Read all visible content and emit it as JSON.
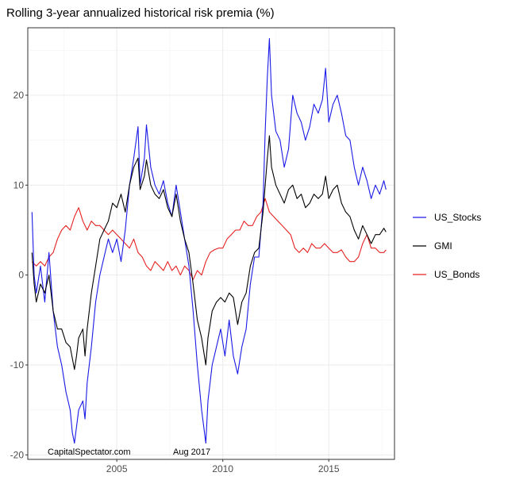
{
  "chart_data": {
    "type": "line",
    "title": "Rolling 3-year annualized historical risk premia (%)",
    "xlabel": "",
    "ylabel": "",
    "xlim": [
      2000.8,
      2018.1
    ],
    "ylim": [
      -20.5,
      27.5
    ],
    "xticks": [
      2005,
      2010,
      2015
    ],
    "yticks": [
      -20,
      -10,
      0,
      10,
      20
    ],
    "grid": true,
    "legend_position": "right",
    "annotations": [
      "CapitalSpectator.com",
      "Aug 2017"
    ],
    "series": [
      {
        "name": "US_Stocks",
        "color": "#1a1ae6",
        "points": [
          [
            2001.0,
            7.0
          ],
          [
            2001.1,
            0.0
          ],
          [
            2001.2,
            -2.0
          ],
          [
            2001.4,
            1.0
          ],
          [
            2001.6,
            -3.0
          ],
          [
            2001.8,
            2.5
          ],
          [
            2002.0,
            -4.0
          ],
          [
            2002.2,
            -8.0
          ],
          [
            2002.4,
            -10.0
          ],
          [
            2002.6,
            -13.0
          ],
          [
            2002.8,
            -15.0
          ],
          [
            2002.9,
            -17.5
          ],
          [
            2003.0,
            -18.7
          ],
          [
            2003.2,
            -15.0
          ],
          [
            2003.4,
            -14.0
          ],
          [
            2003.5,
            -16.0
          ],
          [
            2003.6,
            -12.0
          ],
          [
            2003.8,
            -8.0
          ],
          [
            2004.0,
            -3.0
          ],
          [
            2004.2,
            0.0
          ],
          [
            2004.4,
            2.0
          ],
          [
            2004.6,
            4.0
          ],
          [
            2004.8,
            2.5
          ],
          [
            2005.0,
            4.0
          ],
          [
            2005.2,
            1.5
          ],
          [
            2005.4,
            5.0
          ],
          [
            2005.6,
            10.0
          ],
          [
            2005.8,
            13.0
          ],
          [
            2006.0,
            16.5
          ],
          [
            2006.1,
            10.0
          ],
          [
            2006.3,
            13.0
          ],
          [
            2006.4,
            16.7
          ],
          [
            2006.6,
            12.0
          ],
          [
            2006.8,
            10.0
          ],
          [
            2007.0,
            9.0
          ],
          [
            2007.2,
            10.5
          ],
          [
            2007.4,
            8.0
          ],
          [
            2007.6,
            6.5
          ],
          [
            2007.8,
            10.0
          ],
          [
            2008.0,
            7.0
          ],
          [
            2008.2,
            4.0
          ],
          [
            2008.4,
            1.0
          ],
          [
            2008.6,
            -4.0
          ],
          [
            2008.8,
            -10.0
          ],
          [
            2009.0,
            -15.0
          ],
          [
            2009.2,
            -18.7
          ],
          [
            2009.3,
            -14.0
          ],
          [
            2009.5,
            -10.0
          ],
          [
            2009.7,
            -8.0
          ],
          [
            2009.9,
            -6.0
          ],
          [
            2010.1,
            -9.0
          ],
          [
            2010.3,
            -5.0
          ],
          [
            2010.5,
            -9.0
          ],
          [
            2010.7,
            -11.0
          ],
          [
            2010.9,
            -8.0
          ],
          [
            2011.1,
            -6.0
          ],
          [
            2011.3,
            -1.0
          ],
          [
            2011.5,
            2.0
          ],
          [
            2011.7,
            2.0
          ],
          [
            2011.9,
            8.0
          ],
          [
            2012.0,
            16.0
          ],
          [
            2012.1,
            22.0
          ],
          [
            2012.2,
            26.3
          ],
          [
            2012.3,
            20.0
          ],
          [
            2012.5,
            16.0
          ],
          [
            2012.7,
            15.0
          ],
          [
            2012.9,
            12.0
          ],
          [
            2013.1,
            14.0
          ],
          [
            2013.3,
            20.0
          ],
          [
            2013.5,
            18.0
          ],
          [
            2013.7,
            17.0
          ],
          [
            2013.9,
            15.0
          ],
          [
            2014.1,
            16.5
          ],
          [
            2014.3,
            19.0
          ],
          [
            2014.5,
            18.0
          ],
          [
            2014.7,
            19.5
          ],
          [
            2014.85,
            23.0
          ],
          [
            2015.0,
            17.0
          ],
          [
            2015.2,
            19.0
          ],
          [
            2015.4,
            20.0
          ],
          [
            2015.6,
            18.0
          ],
          [
            2015.8,
            15.5
          ],
          [
            2016.0,
            15.0
          ],
          [
            2016.2,
            12.0
          ],
          [
            2016.4,
            10.0
          ],
          [
            2016.6,
            12.0
          ],
          [
            2016.8,
            10.5
          ],
          [
            2017.0,
            8.5
          ],
          [
            2017.2,
            10.0
          ],
          [
            2017.4,
            9.0
          ],
          [
            2017.6,
            10.5
          ],
          [
            2017.7,
            9.5
          ]
        ]
      },
      {
        "name": "GMI",
        "color": "#000000",
        "points": [
          [
            2001.0,
            2.5
          ],
          [
            2001.1,
            -1.0
          ],
          [
            2001.2,
            -3.0
          ],
          [
            2001.4,
            -1.0
          ],
          [
            2001.6,
            -2.0
          ],
          [
            2001.8,
            0.0
          ],
          [
            2002.0,
            -4.0
          ],
          [
            2002.2,
            -6.0
          ],
          [
            2002.4,
            -6.0
          ],
          [
            2002.6,
            -7.5
          ],
          [
            2002.8,
            -8.0
          ],
          [
            2003.0,
            -10.5
          ],
          [
            2003.1,
            -9.0
          ],
          [
            2003.2,
            -7.0
          ],
          [
            2003.4,
            -6.0
          ],
          [
            2003.5,
            -9.0
          ],
          [
            2003.6,
            -6.0
          ],
          [
            2003.8,
            -2.0
          ],
          [
            2004.0,
            1.0
          ],
          [
            2004.2,
            4.0
          ],
          [
            2004.4,
            5.0
          ],
          [
            2004.6,
            6.0
          ],
          [
            2004.8,
            8.0
          ],
          [
            2005.0,
            7.5
          ],
          [
            2005.2,
            9.0
          ],
          [
            2005.4,
            7.0
          ],
          [
            2005.6,
            10.0
          ],
          [
            2005.8,
            12.0
          ],
          [
            2006.0,
            13.0
          ],
          [
            2006.1,
            9.5
          ],
          [
            2006.3,
            11.0
          ],
          [
            2006.4,
            12.8
          ],
          [
            2006.6,
            10.0
          ],
          [
            2006.8,
            9.0
          ],
          [
            2007.0,
            8.5
          ],
          [
            2007.2,
            9.5
          ],
          [
            2007.4,
            7.5
          ],
          [
            2007.6,
            6.5
          ],
          [
            2007.8,
            9.0
          ],
          [
            2008.0,
            6.0
          ],
          [
            2008.2,
            4.0
          ],
          [
            2008.4,
            2.5
          ],
          [
            2008.6,
            -1.0
          ],
          [
            2008.8,
            -5.0
          ],
          [
            2009.0,
            -7.0
          ],
          [
            2009.2,
            -10.0
          ],
          [
            2009.3,
            -7.0
          ],
          [
            2009.5,
            -4.0
          ],
          [
            2009.7,
            -3.0
          ],
          [
            2009.9,
            -2.5
          ],
          [
            2010.1,
            -3.0
          ],
          [
            2010.3,
            -2.0
          ],
          [
            2010.5,
            -2.5
          ],
          [
            2010.7,
            -5.5
          ],
          [
            2010.9,
            -3.0
          ],
          [
            2011.1,
            -2.0
          ],
          [
            2011.3,
            1.0
          ],
          [
            2011.5,
            2.5
          ],
          [
            2011.7,
            3.0
          ],
          [
            2011.9,
            7.0
          ],
          [
            2012.0,
            10.0
          ],
          [
            2012.1,
            13.0
          ],
          [
            2012.2,
            15.5
          ],
          [
            2012.3,
            12.0
          ],
          [
            2012.5,
            10.0
          ],
          [
            2012.7,
            9.0
          ],
          [
            2012.9,
            8.0
          ],
          [
            2013.1,
            9.5
          ],
          [
            2013.3,
            10.0
          ],
          [
            2013.5,
            8.5
          ],
          [
            2013.7,
            9.0
          ],
          [
            2013.9,
            7.5
          ],
          [
            2014.1,
            8.0
          ],
          [
            2014.3,
            9.0
          ],
          [
            2014.5,
            8.5
          ],
          [
            2014.7,
            9.0
          ],
          [
            2014.85,
            11.0
          ],
          [
            2015.0,
            8.5
          ],
          [
            2015.2,
            9.5
          ],
          [
            2015.4,
            10.0
          ],
          [
            2015.6,
            8.0
          ],
          [
            2015.8,
            7.0
          ],
          [
            2016.0,
            6.5
          ],
          [
            2016.2,
            5.0
          ],
          [
            2016.4,
            4.0
          ],
          [
            2016.6,
            5.5
          ],
          [
            2016.8,
            4.5
          ],
          [
            2017.0,
            3.5
          ],
          [
            2017.2,
            4.5
          ],
          [
            2017.4,
            4.5
          ],
          [
            2017.6,
            5.2
          ],
          [
            2017.7,
            4.8
          ]
        ]
      },
      {
        "name": "US_Bonds",
        "color": "#e62020",
        "points": [
          [
            2001.0,
            1.5
          ],
          [
            2001.2,
            1.0
          ],
          [
            2001.4,
            1.5
          ],
          [
            2001.6,
            1.0
          ],
          [
            2001.8,
            2.0
          ],
          [
            2002.0,
            2.5
          ],
          [
            2002.2,
            4.0
          ],
          [
            2002.4,
            5.0
          ],
          [
            2002.6,
            5.5
          ],
          [
            2002.8,
            5.0
          ],
          [
            2003.0,
            6.5
          ],
          [
            2003.2,
            7.5
          ],
          [
            2003.4,
            6.0
          ],
          [
            2003.6,
            5.0
          ],
          [
            2003.8,
            6.0
          ],
          [
            2004.0,
            5.5
          ],
          [
            2004.2,
            5.5
          ],
          [
            2004.4,
            5.0
          ],
          [
            2004.6,
            4.5
          ],
          [
            2004.8,
            5.0
          ],
          [
            2005.0,
            4.5
          ],
          [
            2005.2,
            4.0
          ],
          [
            2005.4,
            3.5
          ],
          [
            2005.6,
            3.0
          ],
          [
            2005.8,
            4.0
          ],
          [
            2006.0,
            2.5
          ],
          [
            2006.2,
            2.0
          ],
          [
            2006.4,
            1.0
          ],
          [
            2006.6,
            0.5
          ],
          [
            2006.8,
            1.5
          ],
          [
            2007.0,
            1.0
          ],
          [
            2007.2,
            0.5
          ],
          [
            2007.4,
            1.5
          ],
          [
            2007.6,
            0.5
          ],
          [
            2007.8,
            1.0
          ],
          [
            2008.0,
            0.0
          ],
          [
            2008.2,
            1.0
          ],
          [
            2008.4,
            0.5
          ],
          [
            2008.6,
            -0.5
          ],
          [
            2008.8,
            0.5
          ],
          [
            2009.0,
            0.0
          ],
          [
            2009.2,
            1.5
          ],
          [
            2009.4,
            2.5
          ],
          [
            2009.6,
            2.8
          ],
          [
            2009.8,
            3.0
          ],
          [
            2010.0,
            3.0
          ],
          [
            2010.2,
            4.0
          ],
          [
            2010.4,
            4.5
          ],
          [
            2010.6,
            5.0
          ],
          [
            2010.8,
            5.0
          ],
          [
            2011.0,
            6.0
          ],
          [
            2011.2,
            5.5
          ],
          [
            2011.4,
            5.5
          ],
          [
            2011.6,
            6.5
          ],
          [
            2011.8,
            7.0
          ],
          [
            2012.0,
            8.5
          ],
          [
            2012.2,
            7.0
          ],
          [
            2012.4,
            6.5
          ],
          [
            2012.6,
            6.0
          ],
          [
            2012.8,
            5.5
          ],
          [
            2013.0,
            5.0
          ],
          [
            2013.2,
            4.5
          ],
          [
            2013.4,
            3.0
          ],
          [
            2013.6,
            2.5
          ],
          [
            2013.8,
            3.0
          ],
          [
            2014.0,
            2.5
          ],
          [
            2014.2,
            3.5
          ],
          [
            2014.4,
            3.0
          ],
          [
            2014.6,
            3.0
          ],
          [
            2014.8,
            3.5
          ],
          [
            2015.0,
            3.0
          ],
          [
            2015.2,
            2.5
          ],
          [
            2015.4,
            2.5
          ],
          [
            2015.6,
            2.8
          ],
          [
            2015.8,
            2.0
          ],
          [
            2016.0,
            1.5
          ],
          [
            2016.2,
            1.5
          ],
          [
            2016.4,
            2.0
          ],
          [
            2016.6,
            3.5
          ],
          [
            2016.8,
            4.5
          ],
          [
            2017.0,
            3.0
          ],
          [
            2017.2,
            3.0
          ],
          [
            2017.4,
            2.5
          ],
          [
            2017.6,
            2.5
          ],
          [
            2017.7,
            2.8
          ]
        ]
      }
    ]
  }
}
